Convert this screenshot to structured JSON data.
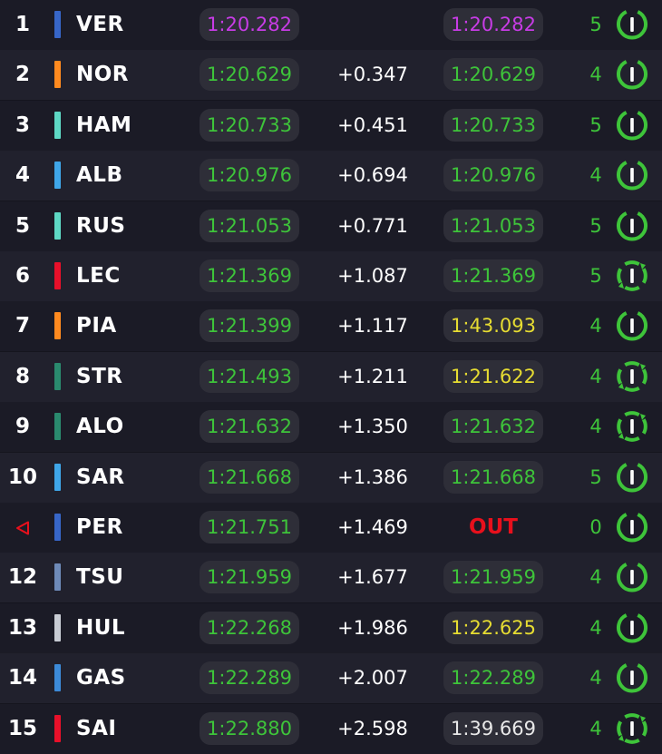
{
  "colors": {
    "purple": "#c83ce6",
    "green": "#3ec43a",
    "yellow": "#e6dc32",
    "white": "#e8e8e8",
    "out": "#e8101c"
  },
  "rows": [
    {
      "pos": "1",
      "team_color": "#3766c8",
      "code": "VER",
      "best": "1:20.282",
      "best_class": "purple",
      "gap": "",
      "last": "1:20.282",
      "last_class": "purple",
      "laps": "5",
      "tyre": "new"
    },
    {
      "pos": "2",
      "team_color": "#ff8a1f",
      "code": "NOR",
      "best": "1:20.629",
      "best_class": "green",
      "gap": "+0.347",
      "last": "1:20.629",
      "last_class": "green",
      "laps": "4",
      "tyre": "new"
    },
    {
      "pos": "3",
      "team_color": "#5ed8c4",
      "code": "HAM",
      "best": "1:20.733",
      "best_class": "green",
      "gap": "+0.451",
      "last": "1:20.733",
      "last_class": "green",
      "laps": "5",
      "tyre": "new"
    },
    {
      "pos": "4",
      "team_color": "#3fa6e8",
      "code": "ALB",
      "best": "1:20.976",
      "best_class": "green",
      "gap": "+0.694",
      "last": "1:20.976",
      "last_class": "green",
      "laps": "4",
      "tyre": "new"
    },
    {
      "pos": "5",
      "team_color": "#5ed8c4",
      "code": "RUS",
      "best": "1:21.053",
      "best_class": "green",
      "gap": "+0.771",
      "last": "1:21.053",
      "last_class": "green",
      "laps": "5",
      "tyre": "new"
    },
    {
      "pos": "6",
      "team_color": "#e8102a",
      "code": "LEC",
      "best": "1:21.369",
      "best_class": "green",
      "gap": "+1.087",
      "last": "1:21.369",
      "last_class": "green",
      "laps": "5",
      "tyre": "used"
    },
    {
      "pos": "7",
      "team_color": "#ff8a1f",
      "code": "PIA",
      "best": "1:21.399",
      "best_class": "green",
      "gap": "+1.117",
      "last": "1:43.093",
      "last_class": "yellow",
      "laps": "4",
      "tyre": "new"
    },
    {
      "pos": "8",
      "team_color": "#2a8a6e",
      "code": "STR",
      "best": "1:21.493",
      "best_class": "green",
      "gap": "+1.211",
      "last": "1:21.622",
      "last_class": "yellow",
      "laps": "4",
      "tyre": "used"
    },
    {
      "pos": "9",
      "team_color": "#2a8a6e",
      "code": "ALO",
      "best": "1:21.632",
      "best_class": "green",
      "gap": "+1.350",
      "last": "1:21.632",
      "last_class": "green",
      "laps": "4",
      "tyre": "used"
    },
    {
      "pos": "10",
      "team_color": "#3fa6e8",
      "code": "SAR",
      "best": "1:21.668",
      "best_class": "green",
      "gap": "+1.386",
      "last": "1:21.668",
      "last_class": "green",
      "laps": "5",
      "tyre": "new"
    },
    {
      "pos": "",
      "pos_icon": "caret-left-icon",
      "team_color": "#3766c8",
      "code": "PER",
      "best": "1:21.751",
      "best_class": "green",
      "gap": "+1.469",
      "last": "",
      "status": "OUT",
      "laps": "0",
      "tyre": "new"
    },
    {
      "pos": "12",
      "team_color": "#6e8ab8",
      "code": "TSU",
      "best": "1:21.959",
      "best_class": "green",
      "gap": "+1.677",
      "last": "1:21.959",
      "last_class": "green",
      "laps": "4",
      "tyre": "new"
    },
    {
      "pos": "13",
      "team_color": "#c8ccd4",
      "code": "HUL",
      "best": "1:22.268",
      "best_class": "green",
      "gap": "+1.986",
      "last": "1:22.625",
      "last_class": "yellow",
      "laps": "4",
      "tyre": "new"
    },
    {
      "pos": "14",
      "team_color": "#3c8ad8",
      "code": "GAS",
      "best": "1:22.289",
      "best_class": "green",
      "gap": "+2.007",
      "last": "1:22.289",
      "last_class": "green",
      "laps": "4",
      "tyre": "new"
    },
    {
      "pos": "15",
      "team_color": "#e8102a",
      "code": "SAI",
      "best": "1:22.880",
      "best_class": "green",
      "gap": "+2.598",
      "last": "1:39.669",
      "last_class": "white",
      "laps": "4",
      "tyre": "used"
    }
  ]
}
